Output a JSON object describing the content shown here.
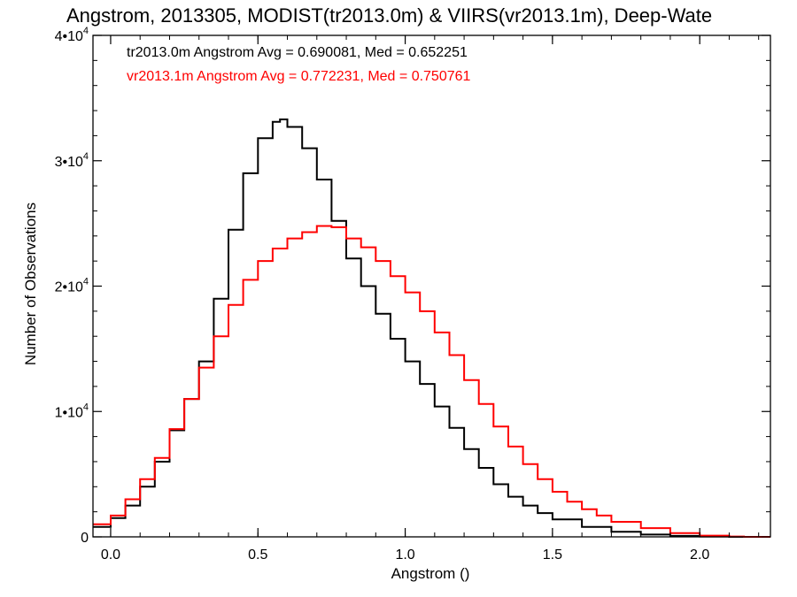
{
  "chart_data": {
    "type": "line",
    "title": "Angstrom, 2013305, MODIST(tr2013.0m) & VIIRS(vr2013.1m), Deep-Wate",
    "xlabel": "Angstrom ()",
    "ylabel": "Number of Observations",
    "xlim": [
      -0.06,
      2.24
    ],
    "ylim": [
      0,
      40000
    ],
    "x_ticks": [
      {
        "value": 0.0,
        "label": "0.0"
      },
      {
        "value": 0.5,
        "label": "0.5"
      },
      {
        "value": 1.0,
        "label": "1.0"
      },
      {
        "value": 1.5,
        "label": "1.5"
      },
      {
        "value": 2.0,
        "label": "2.0"
      }
    ],
    "y_ticks": [
      {
        "value": 0,
        "mantissa": "0",
        "exp": ""
      },
      {
        "value": 10000,
        "mantissa": "1•10",
        "exp": "4"
      },
      {
        "value": 20000,
        "mantissa": "2•10",
        "exp": "4"
      },
      {
        "value": 30000,
        "mantissa": "3•10",
        "exp": "4"
      },
      {
        "value": 40000,
        "mantissa": "4•10",
        "exp": "4"
      }
    ],
    "annotations": [
      {
        "text": "tr2013.0m Angstrom Avg = 0.690081, Med = 0.652251",
        "color": "#000000"
      },
      {
        "text": "vr2013.1m Angstrom Avg = 0.772231, Med = 0.750761",
        "color": "#ff0000"
      }
    ],
    "grid": false,
    "step": true,
    "series": [
      {
        "name": "tr2013.0m",
        "color": "#000000",
        "points": [
          [
            -0.06,
            800
          ],
          [
            0.0,
            1500
          ],
          [
            0.05,
            2500
          ],
          [
            0.1,
            4000
          ],
          [
            0.15,
            6000
          ],
          [
            0.2,
            8500
          ],
          [
            0.25,
            11000
          ],
          [
            0.3,
            14000
          ],
          [
            0.35,
            19000
          ],
          [
            0.4,
            24500
          ],
          [
            0.45,
            29000
          ],
          [
            0.5,
            31800
          ],
          [
            0.55,
            33100
          ],
          [
            0.575,
            33300
          ],
          [
            0.6,
            32700
          ],
          [
            0.65,
            31000
          ],
          [
            0.7,
            28500
          ],
          [
            0.75,
            25200
          ],
          [
            0.8,
            22200
          ],
          [
            0.85,
            20000
          ],
          [
            0.9,
            17800
          ],
          [
            0.95,
            15800
          ],
          [
            1.0,
            14000
          ],
          [
            1.05,
            12200
          ],
          [
            1.1,
            10400
          ],
          [
            1.15,
            8700
          ],
          [
            1.2,
            7000
          ],
          [
            1.25,
            5500
          ],
          [
            1.3,
            4200
          ],
          [
            1.35,
            3200
          ],
          [
            1.4,
            2500
          ],
          [
            1.45,
            1900
          ],
          [
            1.5,
            1400
          ],
          [
            1.6,
            800
          ],
          [
            1.7,
            400
          ],
          [
            1.8,
            180
          ],
          [
            1.9,
            80
          ],
          [
            2.0,
            30
          ],
          [
            2.1,
            0
          ],
          [
            2.24,
            0
          ]
        ]
      },
      {
        "name": "vr2013.1m",
        "color": "#ff0000",
        "points": [
          [
            -0.06,
            1000
          ],
          [
            0.0,
            1700
          ],
          [
            0.05,
            3000
          ],
          [
            0.1,
            4600
          ],
          [
            0.15,
            6300
          ],
          [
            0.2,
            8600
          ],
          [
            0.25,
            11000
          ],
          [
            0.3,
            13500
          ],
          [
            0.35,
            16000
          ],
          [
            0.4,
            18500
          ],
          [
            0.45,
            20500
          ],
          [
            0.5,
            22000
          ],
          [
            0.55,
            23000
          ],
          [
            0.6,
            23800
          ],
          [
            0.65,
            24300
          ],
          [
            0.7,
            24800
          ],
          [
            0.75,
            24700
          ],
          [
            0.8,
            23800
          ],
          [
            0.85,
            23100
          ],
          [
            0.9,
            22000
          ],
          [
            0.95,
            20800
          ],
          [
            1.0,
            19500
          ],
          [
            1.05,
            18000
          ],
          [
            1.1,
            16300
          ],
          [
            1.15,
            14500
          ],
          [
            1.2,
            12500
          ],
          [
            1.25,
            10600
          ],
          [
            1.3,
            8800
          ],
          [
            1.35,
            7200
          ],
          [
            1.4,
            5800
          ],
          [
            1.45,
            4600
          ],
          [
            1.5,
            3600
          ],
          [
            1.55,
            2800
          ],
          [
            1.6,
            2200
          ],
          [
            1.65,
            1700
          ],
          [
            1.7,
            1200
          ],
          [
            1.8,
            700
          ],
          [
            1.9,
            300
          ],
          [
            2.0,
            100
          ],
          [
            2.1,
            30
          ],
          [
            2.15,
            0
          ],
          [
            2.24,
            0
          ]
        ]
      }
    ]
  }
}
